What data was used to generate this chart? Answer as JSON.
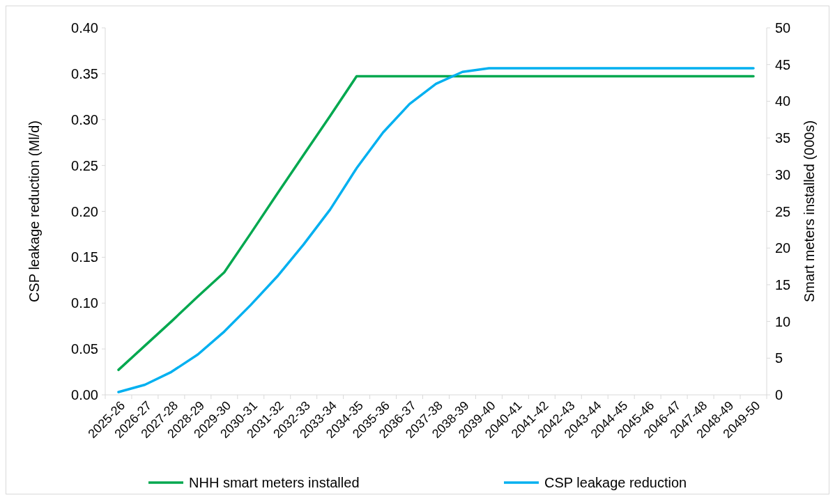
{
  "chart_data": {
    "type": "line",
    "ylabel": "CSP leakage reduction (Ml/d)",
    "y2label": "Smart meters installed (000s)",
    "categories": [
      "2025-26",
      "2026-27",
      "2027-28",
      "2028-29",
      "2029-30",
      "2030-31",
      "2031-32",
      "2032-33",
      "2033-34",
      "2034-35",
      "2035-36",
      "2036-37",
      "2037-38",
      "2038-39",
      "2039-40",
      "2040-41",
      "2041-42",
      "2042-43",
      "2043-44",
      "2044-45",
      "2045-46",
      "2046-47",
      "2047-48",
      "2048-49",
      "2049-50"
    ],
    "series": [
      {
        "name": "NHH smart meters installed",
        "color": "#00a84f",
        "axis": "y2",
        "values": [
          3.4,
          6.7,
          10.0,
          13.4,
          16.7,
          22.0,
          27.4,
          32.7,
          38.0,
          43.4,
          43.4,
          43.4,
          43.4,
          43.4,
          43.4,
          43.4,
          43.4,
          43.4,
          43.4,
          43.4,
          43.4,
          43.4,
          43.4,
          43.4,
          43.4
        ]
      },
      {
        "name": "CSP leakage reduction",
        "color": "#00b0f0",
        "values": [
          0.003,
          0.011,
          0.025,
          0.044,
          0.069,
          0.098,
          0.129,
          0.164,
          0.202,
          0.247,
          0.286,
          0.317,
          0.339,
          0.352,
          0.356,
          0.356,
          0.356,
          0.356,
          0.356,
          0.356,
          0.356,
          0.356,
          0.356,
          0.356,
          0.356
        ]
      }
    ],
    "ylim": [
      0,
      0.4
    ],
    "yticks": [
      {
        "value": 0,
        "label": "0.00"
      },
      {
        "value": 0.05,
        "label": "0.05"
      },
      {
        "value": 0.1,
        "label": "0.10"
      },
      {
        "value": 0.15,
        "label": "0.15"
      },
      {
        "value": 0.2,
        "label": "0.20"
      },
      {
        "value": 0.25,
        "label": "0.25"
      },
      {
        "value": 0.3,
        "label": "0.30"
      },
      {
        "value": 0.35,
        "label": "0.35"
      },
      {
        "value": 0.4,
        "label": "0.40"
      }
    ],
    "y2lim": [
      0,
      50
    ],
    "y2ticks": [
      0,
      5,
      10,
      15,
      20,
      25,
      30,
      35,
      40,
      45,
      50
    ],
    "legend": "bottom",
    "grid": false
  }
}
